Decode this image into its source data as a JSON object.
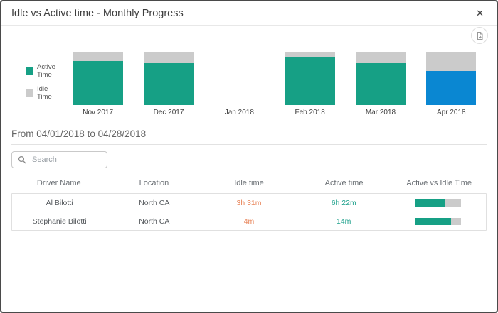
{
  "dialog": {
    "title": "Idle vs Active time - Monthly Progress"
  },
  "chart_data": {
    "type": "bar",
    "stacked": true,
    "categories": [
      "Nov 2017",
      "Dec 2017",
      "Jan 2018",
      "Feb 2018",
      "Mar 2018",
      "Apr 2018"
    ],
    "series": [
      {
        "name": "Active Time",
        "color": "#16a085",
        "values_pct": [
          83,
          79,
          null,
          91,
          79,
          64
        ]
      },
      {
        "name": "Idle Time",
        "color": "#cbcbcb",
        "values_pct": [
          17,
          21,
          null,
          9,
          21,
          36
        ]
      }
    ],
    "values_unit": "percent_of_bar_height",
    "selected_category": "Apr 2018",
    "selected_active_color": "#0a87d2",
    "legend_position": "left"
  },
  "period_label": "From 04/01/2018 to 04/28/2018",
  "search": {
    "placeholder": "Search"
  },
  "table": {
    "columns": [
      "Driver Name",
      "Location",
      "Idle time",
      "Active time",
      "Active vs Idle Time"
    ],
    "rows": [
      {
        "driver": "Al Bilotti",
        "location": "North CA",
        "idle_time": "3h 31m",
        "active_time": "6h 22m",
        "active_pct": 64
      },
      {
        "driver": "Stephanie Bilotti",
        "location": "North CA",
        "idle_time": "4m",
        "active_time": "14m",
        "active_pct": 78
      }
    ]
  },
  "icons": {
    "close": "✕"
  },
  "colors": {
    "active": "#16a085",
    "idle": "#cbcbcb",
    "selected_month": "#0a87d2",
    "idle_text": "#e8855a",
    "active_text": "#1fa18c"
  }
}
